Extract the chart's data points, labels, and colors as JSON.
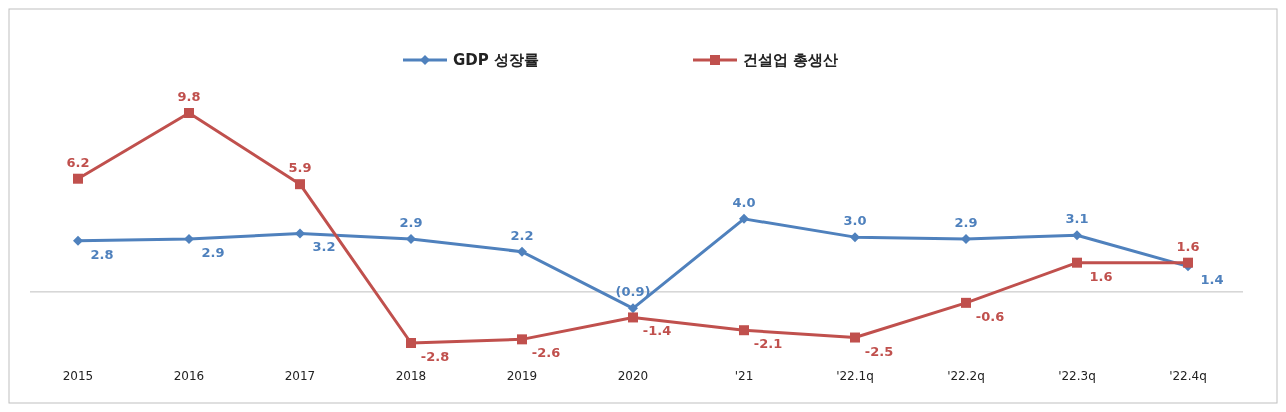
{
  "chart_data": {
    "type": "line",
    "categories": [
      "2015",
      "2016",
      "2017",
      "2018",
      "2019",
      "2020",
      "'21",
      "'22.1q",
      "'22.2q",
      "'22.3q",
      "'22.4q"
    ],
    "legend": "top",
    "series": [
      {
        "name": "GDP 성장률",
        "color": "#4f81bd",
        "marker": "diamond",
        "values": [
          2.8,
          2.9,
          3.2,
          2.9,
          2.2,
          -0.9,
          4.0,
          3.0,
          2.9,
          3.1,
          1.4
        ],
        "value_labels": [
          "2.8",
          "2.9",
          "3.2",
          "2.9",
          "2.2",
          "(0.9)",
          "4.0",
          "3.0",
          "2.9",
          "3.1",
          "1.4"
        ]
      },
      {
        "name": "건설업 총생산",
        "color": "#c0504d",
        "marker": "square",
        "values": [
          6.2,
          9.8,
          5.9,
          -2.8,
          -2.6,
          -1.4,
          -2.1,
          -2.5,
          -0.6,
          1.6,
          1.6
        ],
        "value_labels": [
          "6.2",
          "9.8",
          "5.9",
          "-2.8",
          "-2.6",
          "-1.4",
          "-2.1",
          "-2.5",
          "-0.6",
          "1.6",
          "1.6"
        ]
      }
    ]
  }
}
